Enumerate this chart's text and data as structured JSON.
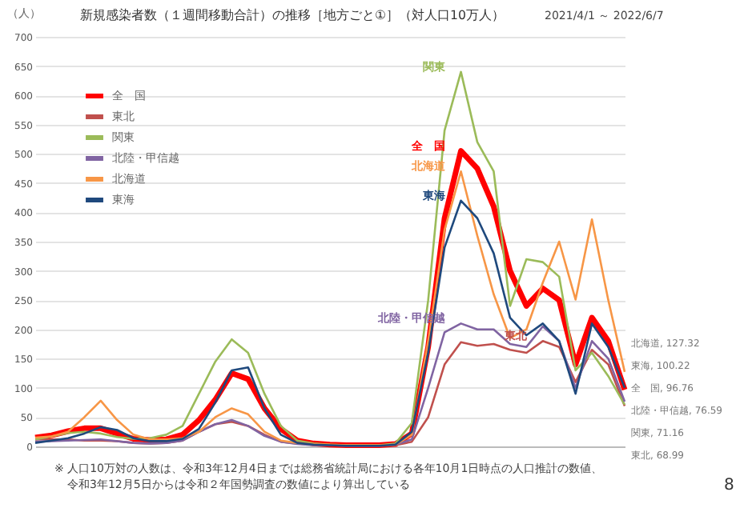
{
  "chart_data": {
    "type": "line",
    "title": "新規感染者数（１週間移動合計）の推移［地方ごと①］（対人口10万人）",
    "subtitle": "2021/4/1 ～ 2022/6/7",
    "ylabel": "（人）",
    "categories": [
      null,
      null,
      null,
      null,
      null,
      null,
      null,
      null,
      null,
      null,
      null,
      null,
      null,
      null,
      null,
      null,
      null,
      null,
      null,
      null,
      null,
      null,
      null,
      null,
      null,
      null,
      null,
      null,
      null,
      null,
      null,
      null,
      null,
      null,
      null,
      null,
      null
    ],
    "series": [
      {
        "name": "全　国",
        "color": "#ff0000",
        "values": [
          15,
          19,
          26,
          31,
          31,
          22,
          13,
          11,
          12,
          20,
          45,
          80,
          125,
          115,
          65,
          30,
          10,
          5,
          3,
          2,
          2,
          2,
          4,
          22,
          170,
          390,
          505,
          475,
          410,
          300,
          240,
          270,
          250,
          140,
          220,
          180,
          96.76
        ]
      },
      {
        "name": "東北",
        "color": "#c0504d",
        "values": [
          12,
          12,
          12,
          10,
          10,
          9,
          6,
          5,
          6,
          10,
          25,
          38,
          42,
          35,
          20,
          8,
          5,
          3,
          2,
          1,
          1,
          1,
          2,
          8,
          50,
          140,
          178,
          172,
          175,
          165,
          160,
          180,
          170,
          110,
          165,
          140,
          68.99
        ]
      },
      {
        "name": "関東",
        "color": "#9bbb59",
        "values": [
          12,
          17,
          23,
          25,
          22,
          16,
          13,
          14,
          20,
          35,
          90,
          145,
          183,
          160,
          90,
          35,
          10,
          5,
          3,
          2,
          2,
          2,
          5,
          40,
          250,
          540,
          640,
          520,
          470,
          240,
          320,
          315,
          290,
          130,
          160,
          120,
          71.16
        ]
      },
      {
        "name": "北陸・甲信越",
        "color": "#8064a2",
        "values": [
          8,
          9,
          10,
          11,
          12,
          9,
          6,
          5,
          6,
          10,
          25,
          38,
          45,
          35,
          18,
          8,
          4,
          2,
          2,
          1,
          1,
          1,
          3,
          12,
          100,
          195,
          210,
          200,
          200,
          175,
          170,
          205,
          180,
          100,
          180,
          150,
          76.59
        ]
      },
      {
        "name": "北海道",
        "color": "#f79646",
        "values": [
          15,
          17,
          25,
          50,
          78,
          45,
          20,
          12,
          12,
          14,
          25,
          50,
          65,
          55,
          25,
          10,
          6,
          4,
          3,
          2,
          2,
          2,
          3,
          20,
          180,
          370,
          470,
          360,
          260,
          185,
          200,
          280,
          350,
          251,
          388,
          250,
          127.32
        ]
      },
      {
        "name": "東海",
        "color": "#1f497d",
        "values": [
          6,
          10,
          14,
          22,
          33,
          28,
          14,
          9,
          9,
          13,
          30,
          75,
          130,
          135,
          65,
          20,
          6,
          3,
          2,
          1,
          1,
          1,
          3,
          25,
          160,
          340,
          420,
          390,
          330,
          220,
          190,
          210,
          180,
          90,
          210,
          170,
          100.22
        ]
      }
    ],
    "ylim": [
      0,
      700
    ],
    "yticks": [
      0,
      50,
      100,
      150,
      200,
      250,
      300,
      350,
      400,
      450,
      500,
      550,
      600,
      650,
      700
    ],
    "grid": "y",
    "legend": "top left",
    "tick_labels": "y",
    "marker": "none",
    "line_style": "solid",
    "annotations": [
      "全　国",
      "東北",
      "関東",
      "北陸・甲信越",
      "北海道",
      "東海",
      "北海道, 127.32",
      "東海, 100.22",
      "全　国, 96.76",
      "北陸・甲信越, 76.59",
      "関東, 71.16",
      "東北, 68.99",
      "※ 人口10万対の人数は、令和3年12月4日までは総務省統計局における各年10月1日時点の人口推計の数値、",
      "令和3年12月5日からは令和２年国勢調査の数値により算出している",
      "8"
    ]
  }
}
